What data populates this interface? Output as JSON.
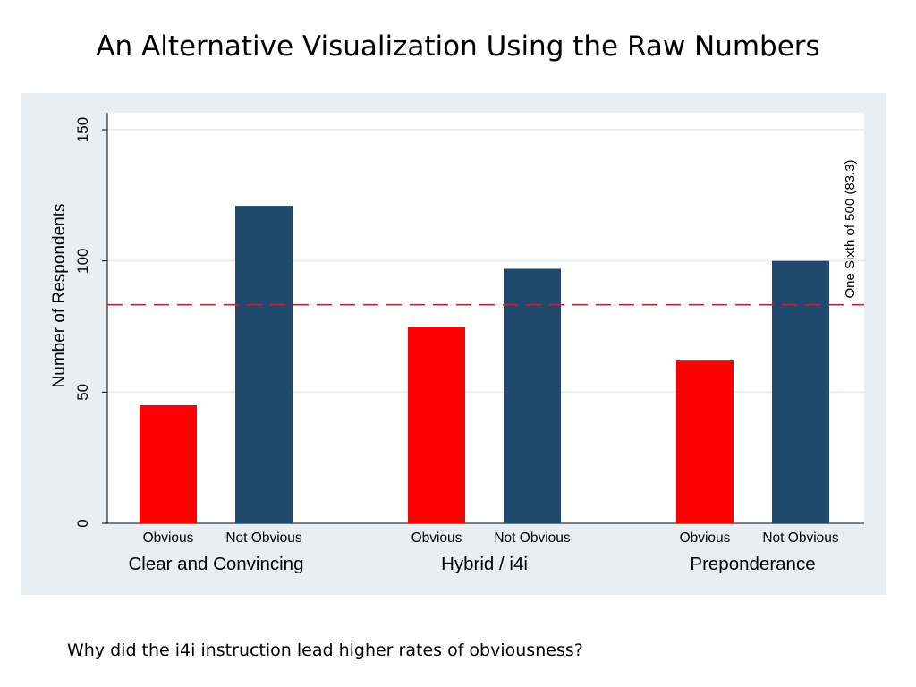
{
  "slide": {
    "title": "An Alternative Visualization Using the Raw Numbers",
    "footnote": "Why did the i4i instruction lead higher rates of obviousness?"
  },
  "colors": {
    "obvious": "#ff0000",
    "not_obvious": "#1f4a6e",
    "reference_line": "#b22a3a",
    "plot_background": "#ffffff",
    "outer_background": "#e9eef2",
    "gridline": "#eaeaea"
  },
  "chart_data": {
    "type": "bar",
    "title": "",
    "ylabel": "Number of Respondents",
    "xlabel": "",
    "ylim": [
      0,
      150
    ],
    "yticks": [
      0,
      50,
      100,
      150
    ],
    "grid": true,
    "legend": "none",
    "groups": [
      {
        "label": "Clear and Convincing",
        "bars": [
          {
            "label": "Obvious",
            "value": 45,
            "color": "#ff0000"
          },
          {
            "label": "Not Obvious",
            "value": 121,
            "color": "#1f4a6e"
          }
        ]
      },
      {
        "label": "Hybrid / i4i",
        "bars": [
          {
            "label": "Obvious",
            "value": 75,
            "color": "#ff0000"
          },
          {
            "label": "Not Obvious",
            "value": 97,
            "color": "#1f4a6e"
          }
        ]
      },
      {
        "label": "Preponderance",
        "bars": [
          {
            "label": "Obvious",
            "value": 62,
            "color": "#ff0000"
          },
          {
            "label": "Not Obvious",
            "value": 100,
            "color": "#1f4a6e"
          }
        ]
      }
    ],
    "reference_line": {
      "value": 83.3,
      "label": "One Sixth of 500 (83.3)",
      "style": "dashed"
    }
  }
}
